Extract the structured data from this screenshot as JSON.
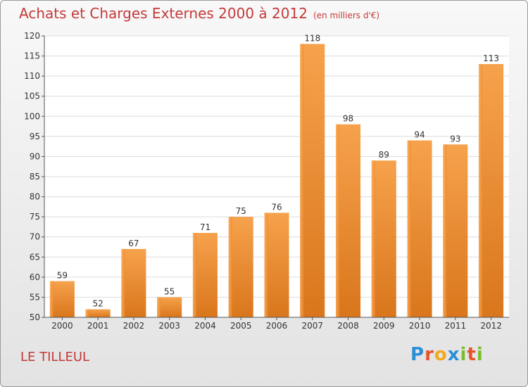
{
  "chart_data": {
    "type": "bar",
    "title": "Achats et Charges Externes 2000 à 2012",
    "subtitle": "(en milliers d'€)",
    "categories": [
      "2000",
      "2001",
      "2002",
      "2003",
      "2004",
      "2005",
      "2006",
      "2007",
      "2008",
      "2009",
      "2010",
      "2011",
      "2012"
    ],
    "values": [
      59,
      52,
      67,
      55,
      71,
      75,
      76,
      118,
      98,
      89,
      94,
      93,
      113
    ],
    "ylim": [
      50,
      120
    ],
    "yticks": [
      50,
      55,
      60,
      65,
      70,
      75,
      80,
      85,
      90,
      95,
      100,
      105,
      110,
      115,
      120
    ],
    "grid": true,
    "bar_color": "#f08a2a",
    "title_color": "#c43a3a"
  },
  "commune": "LE TILLEUL",
  "logo": {
    "letters": [
      "P",
      "r",
      "o",
      "x",
      "i",
      "t",
      "i"
    ],
    "colors": [
      "#2b8fd6",
      "#e8542a",
      "#f2a81d",
      "#2b8fd6",
      "#7bbd2e",
      "#e8542a",
      "#7bbd2e"
    ]
  }
}
